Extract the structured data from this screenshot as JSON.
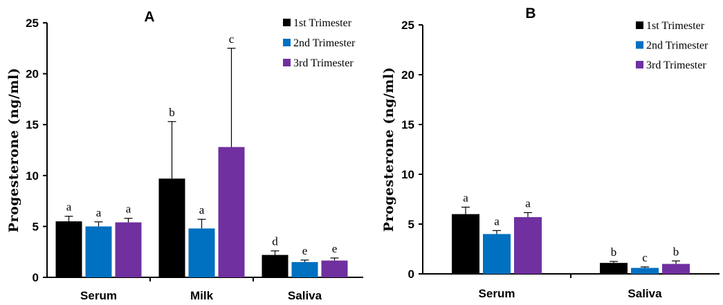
{
  "chart_data": [
    {
      "type": "bar",
      "title": "A",
      "ylabel": "Progesterone (ng/ml)",
      "xlabel": "",
      "ylim": [
        0,
        25
      ],
      "yticks": [
        "0",
        "5",
        "10",
        "15",
        "20",
        "25"
      ],
      "categories": [
        "Serum",
        "Milk",
        "Saliva"
      ],
      "series": [
        {
          "name": "1st Trimester",
          "color": "#000000",
          "values": [
            5.5,
            9.7,
            2.2
          ],
          "errors": [
            0.5,
            5.6,
            0.4
          ],
          "labels": [
            "a",
            "b",
            "d"
          ]
        },
        {
          "name": "2nd Trimester",
          "color": "#0070c0",
          "values": [
            5.0,
            4.8,
            1.5
          ],
          "errors": [
            0.45,
            0.9,
            0.2
          ],
          "labels": [
            "a",
            "a",
            "e"
          ]
        },
        {
          "name": "3rd Trimester",
          "color": "#7030a0",
          "values": [
            5.4,
            12.8,
            1.65
          ],
          "errors": [
            0.4,
            9.7,
            0.25
          ],
          "labels": [
            "a",
            "c",
            "e"
          ]
        }
      ],
      "legend_position": "top-right",
      "grid": false
    },
    {
      "type": "bar",
      "title": "B",
      "ylabel": "Progesterone (ng/ml)",
      "xlabel": "",
      "ylim": [
        0,
        25
      ],
      "yticks": [
        "0",
        "5",
        "10",
        "15",
        "20",
        "25"
      ],
      "categories": [
        "Serum",
        "Saliva"
      ],
      "series": [
        {
          "name": "1st Trimester",
          "color": "#000000",
          "values": [
            6.0,
            1.1
          ],
          "errors": [
            0.7,
            0.15
          ],
          "labels": [
            "a",
            "b"
          ]
        },
        {
          "name": "2nd Trimester",
          "color": "#0070c0",
          "values": [
            4.0,
            0.6
          ],
          "errors": [
            0.35,
            0.1
          ],
          "labels": [
            "a",
            "c"
          ]
        },
        {
          "name": "3rd Trimester",
          "color": "#7030a0",
          "values": [
            5.7,
            1.0
          ],
          "errors": [
            0.45,
            0.3
          ],
          "labels": [
            "a",
            "b"
          ]
        }
      ],
      "legend_position": "top-right",
      "grid": false
    }
  ]
}
